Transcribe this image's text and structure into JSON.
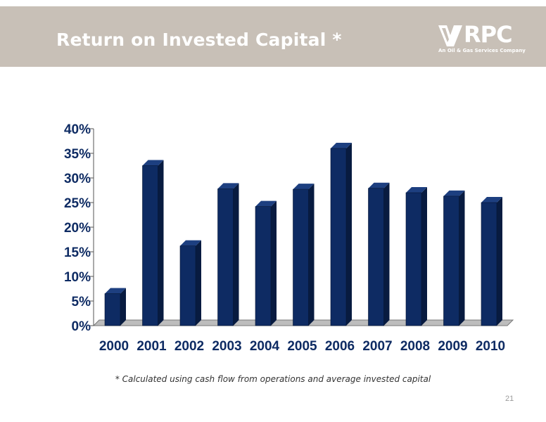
{
  "header": {
    "title": "Return on Invested Capital *",
    "logo_text": "RPC",
    "logo_subtitle": "An Oil & Gas Services Company",
    "background_color": "#c8c0b7"
  },
  "chart_data": {
    "type": "bar",
    "categories": [
      "2000",
      "2001",
      "2002",
      "2003",
      "2004",
      "2005",
      "2006",
      "2007",
      "2008",
      "2009",
      "2010"
    ],
    "values": [
      6.5,
      32.5,
      16.2,
      27.8,
      24.2,
      27.7,
      36.0,
      27.9,
      27.0,
      26.3,
      25.0
    ],
    "y_ticks": [
      "0%",
      "5%",
      "10%",
      "15%",
      "20%",
      "25%",
      "30%",
      "35%",
      "40%"
    ],
    "ylim": [
      0,
      40
    ],
    "title": "",
    "xlabel": "",
    "ylabel": "",
    "grid": false,
    "bar_color": "#0e2b63"
  },
  "footnote": "* Calculated using cash flow from operations and average invested capital",
  "page_number": "21"
}
